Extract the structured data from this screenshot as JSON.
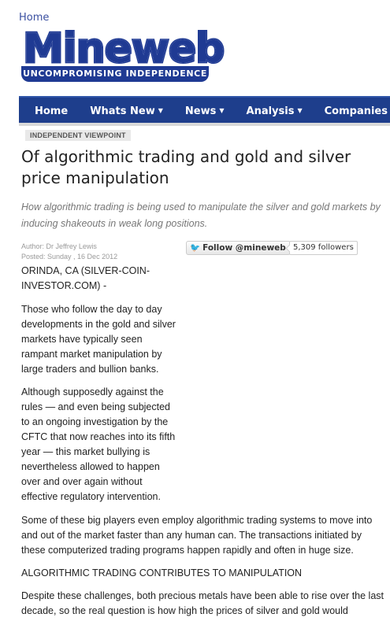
{
  "top_link": "Home",
  "logo": {
    "word": "Mineweb",
    "tagline": "UNCOMPROMISING INDEPENDENCE"
  },
  "nav": {
    "items": [
      {
        "label": "Home",
        "has_caret": false
      },
      {
        "label": "Whats New",
        "has_caret": true
      },
      {
        "label": "News",
        "has_caret": true
      },
      {
        "label": "Analysis",
        "has_caret": true
      },
      {
        "label": "Companies",
        "has_caret": true
      }
    ]
  },
  "article": {
    "section": "INDEPENDENT VIEWPOINT",
    "title": "Of algorithmic trading and gold and silver price manipulation",
    "subtitle": "How algorithmic trading is being used to manipulate the silver and gold markets by inducing shakeouts in weak long positions.",
    "author": "Author: Dr Jeffrey Lewis",
    "posted": "Posted:  Sunday , 16 Dec 2012",
    "dateline": "ORINDA, CA (SILVER-COIN-INVESTOR.COM) -",
    "paragraphs": [
      "Those who follow the day to day developments in the gold and silver markets have typically seen rampant market manipulation by large traders and bullion banks.",
      "Although supposedly against the rules — and even being subjected to an ongoing investigation by the CFTC that now reaches into its fifth year — this market bullying is nevertheless allowed to happen over and over again without effective regulatory intervention.",
      "Some of these big players even employ algorithmic trading systems to move into and out of the market faster than any human can. The transactions initiated by these computerized trading programs happen rapidly and often in huge size.",
      "ALGORITHMIC TRADING CONTRIBUTES TO MANIPULATION",
      "Despite these challenges, both precious metals have been able to rise over the last decade, so the real question is how high the prices of silver and gold would"
    ]
  },
  "twitter": {
    "follow_label": "Follow @mineweb",
    "followers": "5,309 followers",
    "icon": "twitter-bird-icon",
    "bird_color": "#2aa6e0"
  },
  "colors": {
    "brand_blue": "#1f3a93",
    "nav_bg": "#1e3e8c",
    "link": "#3a4fa0"
  }
}
